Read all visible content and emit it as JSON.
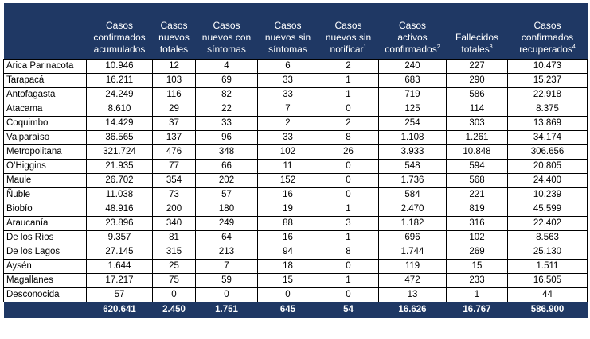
{
  "table": {
    "headers": [
      {
        "lines": [
          "Casos",
          "confirmados",
          "acumulados"
        ],
        "sup": ""
      },
      {
        "lines": [
          "Casos",
          "nuevos",
          "totales"
        ],
        "sup": ""
      },
      {
        "lines": [
          "Casos",
          "nuevos con",
          "síntomas"
        ],
        "sup": ""
      },
      {
        "lines": [
          "Casos",
          "nuevos sin",
          "síntomas"
        ],
        "sup": ""
      },
      {
        "lines": [
          "Casos",
          "nuevos sin",
          "notificar"
        ],
        "sup": "1"
      },
      {
        "lines": [
          "Casos",
          "activos",
          "confirmados"
        ],
        "sup": "2"
      },
      {
        "lines": [
          "Fallecidos",
          "totales"
        ],
        "sup": "3"
      },
      {
        "lines": [
          "Casos",
          "confirmados",
          "recuperados"
        ],
        "sup": "4"
      }
    ],
    "rows": [
      {
        "region": "Arica Parinacota",
        "values": [
          "10.946",
          "12",
          "4",
          "6",
          "2",
          "240",
          "227",
          "10.473"
        ]
      },
      {
        "region": "Tarapacá",
        "values": [
          "16.211",
          "103",
          "69",
          "33",
          "1",
          "683",
          "290",
          "15.237"
        ]
      },
      {
        "region": "Antofagasta",
        "values": [
          "24.249",
          "116",
          "82",
          "33",
          "1",
          "719",
          "586",
          "22.918"
        ]
      },
      {
        "region": "Atacama",
        "values": [
          "8.610",
          "29",
          "22",
          "7",
          "0",
          "125",
          "114",
          "8.375"
        ]
      },
      {
        "region": "Coquimbo",
        "values": [
          "14.429",
          "37",
          "33",
          "2",
          "2",
          "254",
          "303",
          "13.869"
        ]
      },
      {
        "region": "Valparaíso",
        "values": [
          "36.565",
          "137",
          "96",
          "33",
          "8",
          "1.108",
          "1.261",
          "34.174"
        ]
      },
      {
        "region": "Metropolitana",
        "values": [
          "321.724",
          "476",
          "348",
          "102",
          "26",
          "3.933",
          "10.848",
          "306.656"
        ]
      },
      {
        "region": "O’Higgins",
        "values": [
          "21.935",
          "77",
          "66",
          "11",
          "0",
          "548",
          "594",
          "20.805"
        ]
      },
      {
        "region": "Maule",
        "values": [
          "26.702",
          "354",
          "202",
          "152",
          "0",
          "1.736",
          "568",
          "24.400"
        ]
      },
      {
        "region": "Ñuble",
        "values": [
          "11.038",
          "73",
          "57",
          "16",
          "0",
          "584",
          "221",
          "10.239"
        ]
      },
      {
        "region": "Biobío",
        "values": [
          "48.916",
          "200",
          "180",
          "19",
          "1",
          "2.470",
          "819",
          "45.599"
        ]
      },
      {
        "region": "Araucanía",
        "values": [
          "23.896",
          "340",
          "249",
          "88",
          "3",
          "1.182",
          "316",
          "22.402"
        ]
      },
      {
        "region": "De los Ríos",
        "values": [
          "9.357",
          "81",
          "64",
          "16",
          "1",
          "696",
          "102",
          "8.563"
        ]
      },
      {
        "region": "De los Lagos",
        "values": [
          "27.145",
          "315",
          "213",
          "94",
          "8",
          "1.744",
          "269",
          "25.130"
        ]
      },
      {
        "region": "Aysén",
        "values": [
          "1.644",
          "25",
          "7",
          "18",
          "0",
          "119",
          "15",
          "1.511"
        ]
      },
      {
        "region": "Magallanes",
        "values": [
          "17.217",
          "75",
          "59",
          "15",
          "1",
          "472",
          "233",
          "16.505"
        ]
      },
      {
        "region": "Desconocida",
        "values": [
          "57",
          "0",
          "0",
          "0",
          "0",
          "13",
          "1",
          "44"
        ]
      }
    ],
    "totals": [
      "620.641",
      "2.450",
      "1.751",
      "645",
      "54",
      "16.626",
      "16.767",
      "586.900"
    ]
  },
  "colors": {
    "header_bg": "#1f3864",
    "header_text": "#ffffff",
    "grid": "#000000"
  }
}
